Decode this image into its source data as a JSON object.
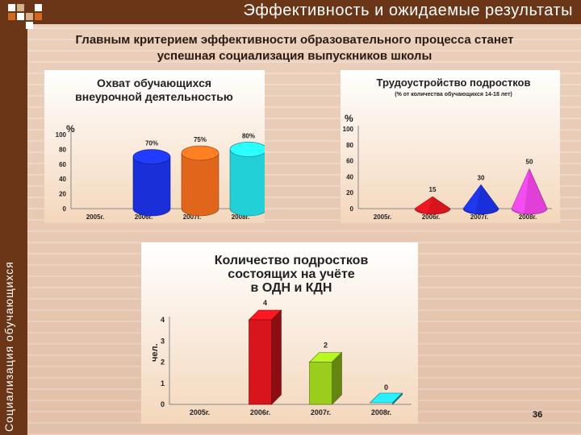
{
  "slide": {
    "title": "Эффективность и ожидаемые результаты",
    "sidebar_text": "Социализация обучающихся",
    "subtitle_line1": "Главным критерием эффективности образовательного процесса  станет",
    "subtitle_line2": "успешная социализация выпускников школы",
    "page_number": "36",
    "colors": {
      "bar": "#6a3617",
      "accent_orange": "#d2691e",
      "accent_tan": "#d9b08c"
    }
  },
  "chart_data": [
    {
      "type": "bar",
      "title_line1": "Охват обучающихся",
      "title_line2": "внеурочной деятельностью",
      "ylabel": "%",
      "ylim": [
        0,
        100
      ],
      "yticks": [
        0,
        20,
        40,
        60,
        80,
        100
      ],
      "categories": [
        "2005г.",
        "2006г.",
        "2007г.",
        "2008г."
      ],
      "values": [
        null,
        70,
        75,
        80
      ],
      "data_labels": [
        "",
        "70%",
        "75%",
        "80%"
      ],
      "colors": [
        "#1a2fd8",
        "#e0661c",
        "#22d0d8"
      ],
      "shape": "cylinder"
    },
    {
      "type": "bar",
      "title": "Трудоустройство подростков",
      "subtitle": "(% от количества обучающихся 14-18 лет)",
      "ylabel": "%",
      "ylim": [
        0,
        100
      ],
      "yticks": [
        0,
        20,
        40,
        60,
        80,
        100
      ],
      "categories": [
        "2005г.",
        "2006г.",
        "2007г.",
        "2008г."
      ],
      "values": [
        null,
        15,
        30,
        50
      ],
      "data_labels": [
        "",
        "15",
        "30",
        "50"
      ],
      "colors": [
        "#d8141c",
        "#1a2fd8",
        "#e040d8"
      ],
      "shape": "cone"
    },
    {
      "type": "bar",
      "title_line1": "Количество подростков",
      "title_line2": "состоящих на учёте",
      "title_line3": "в ОДН и КДН",
      "ylabel": "чел.",
      "ylim": [
        0,
        4
      ],
      "yticks": [
        0,
        1,
        2,
        3,
        4
      ],
      "categories": [
        "2005г.",
        "2006г.",
        "2007г.",
        "2008г."
      ],
      "values": [
        null,
        4,
        2,
        0
      ],
      "data_labels": [
        "",
        "4",
        "2",
        "0"
      ],
      "colors": [
        "#d8141c",
        "#9acd1c",
        "#22c8d8"
      ],
      "shape": "box"
    }
  ]
}
